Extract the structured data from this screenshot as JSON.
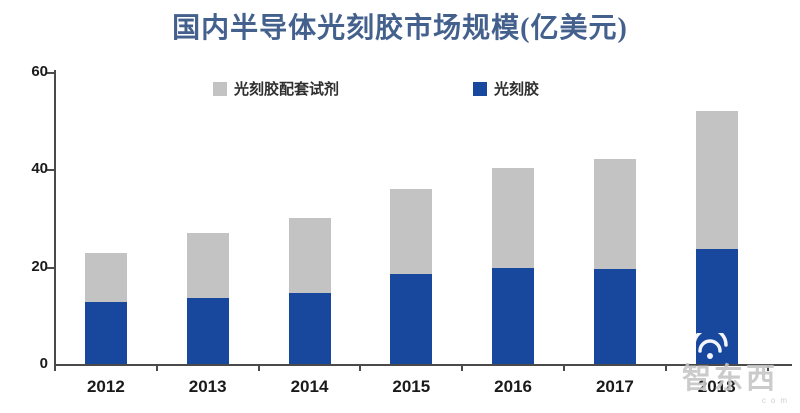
{
  "chart_data": {
    "type": "bar",
    "stacked": true,
    "title": "国内半导体光刻胶市场规模(亿美元)",
    "categories": [
      "2012",
      "2013",
      "2014",
      "2015",
      "2016",
      "2017",
      "2018"
    ],
    "series": [
      {
        "name": "光刻胶",
        "color": "#17489e",
        "values": [
          12.8,
          13.5,
          14.5,
          18.5,
          19.7,
          19.5,
          23.6
        ]
      },
      {
        "name": "光刻胶配套试剂",
        "color": "#c3c3c3",
        "values": [
          10.0,
          13.5,
          15.5,
          17.5,
          20.6,
          22.6,
          28.4
        ]
      }
    ],
    "totals": [
      22.8,
      27.0,
      30.0,
      36.0,
      40.3,
      42.1,
      52.0
    ],
    "xlabel": "",
    "ylabel": "",
    "ylim": [
      0,
      60
    ],
    "yticks": [
      0,
      20,
      40,
      60
    ],
    "grid": false,
    "legend": {
      "position": "top-inside",
      "items": [
        {
          "label": "光刻胶配套试剂",
          "color": "#c3c3c3"
        },
        {
          "label": "光刻胶",
          "color": "#17489e"
        }
      ]
    }
  },
  "colors": {
    "title_text": "#44618e",
    "axis": "#4a4a4a",
    "tick_text": "#1a1a1a",
    "watermark": "#c6c6c6"
  },
  "watermark": {
    "text": "智东西",
    "subtext": "com"
  }
}
